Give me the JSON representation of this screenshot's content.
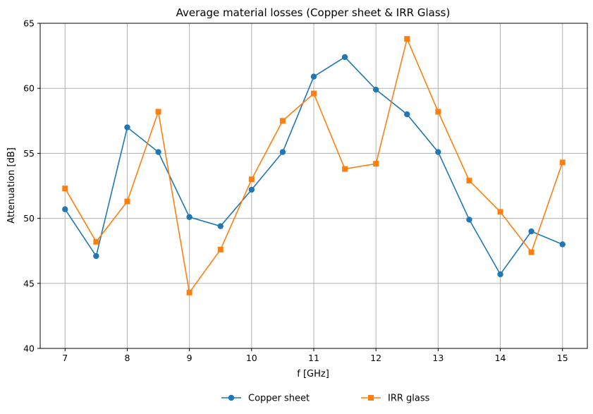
{
  "chart_data": {
    "type": "line",
    "title": "Average material losses (Copper sheet & IRR Glass)",
    "xlabel": "f [GHz]",
    "ylabel": "Attenuation [dB]",
    "xlim": [
      6.6,
      15.4
    ],
    "ylim": [
      40,
      65
    ],
    "xticks": [
      7,
      8,
      9,
      10,
      11,
      12,
      13,
      14,
      15
    ],
    "yticks": [
      40,
      45,
      50,
      55,
      60,
      65
    ],
    "grid": true,
    "legend_position": "bottom-center",
    "x": [
      7,
      7.5,
      8,
      8.5,
      9,
      9.5,
      10,
      10.5,
      11,
      11.5,
      12,
      12.5,
      13,
      13.5,
      14,
      14.5,
      15
    ],
    "series": [
      {
        "name": "Copper sheet",
        "color": "#1f77b4",
        "marker": "circle",
        "values": [
          50.7,
          47.1,
          57.0,
          55.1,
          50.1,
          49.4,
          52.2,
          55.1,
          60.9,
          62.4,
          59.9,
          58.0,
          55.1,
          49.9,
          45.7,
          49.0,
          48.0
        ]
      },
      {
        "name": "IRR glass",
        "color": "#ff7f0e",
        "marker": "square",
        "values": [
          52.3,
          48.2,
          51.3,
          58.2,
          44.3,
          47.6,
          53.0,
          57.5,
          59.6,
          53.8,
          54.2,
          63.8,
          58.2,
          52.9,
          50.5,
          47.4,
          54.3
        ]
      }
    ]
  }
}
